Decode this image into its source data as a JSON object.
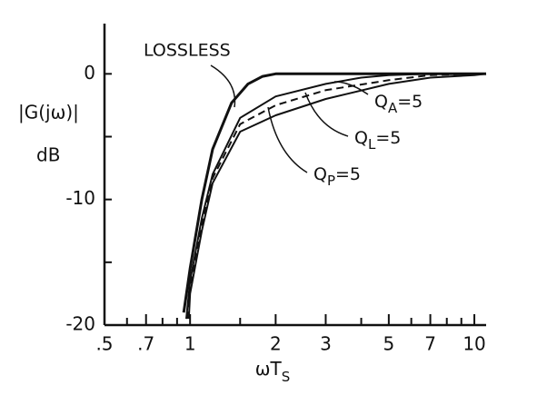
{
  "chart_data": {
    "type": "line",
    "ylabel": "|G(jω)|",
    "yunit": "dB",
    "xlabel": "ωT",
    "xlabel_sub": "S",
    "xscale": "log",
    "xlim": [
      0.5,
      11
    ],
    "ylim": [
      -20,
      4
    ],
    "xticks": [
      {
        "value": 0.5,
        "label": ".5"
      },
      {
        "value": 0.7,
        "label": ".7"
      },
      1,
      2,
      3,
      5,
      7,
      10
    ],
    "xticks_minor": [
      0.6,
      0.8,
      0.9,
      1.5,
      4,
      6,
      8,
      9
    ],
    "yticks": [
      0,
      -10,
      -20
    ],
    "yticks_minor": [
      -5,
      -15
    ],
    "color": "#111111",
    "series": [
      {
        "name": "LOSSLESS",
        "style": "thick",
        "x": [
          0.95,
          1.0,
          1.1,
          1.2,
          1.4,
          1.6,
          1.8,
          2,
          3,
          5,
          11
        ],
        "values": [
          -19,
          -15.5,
          -10,
          -6,
          -2.3,
          -0.8,
          -0.2,
          0,
          0,
          0,
          0
        ]
      },
      {
        "name": "Q",
        "name_sub": "A",
        "name_rest": "=5",
        "style": "solid",
        "x": [
          0.97,
          1.0,
          1.1,
          1.2,
          1.5,
          2,
          3,
          4,
          5,
          7,
          11
        ],
        "values": [
          -19.5,
          -16.5,
          -11.5,
          -8,
          -3.5,
          -1.8,
          -0.8,
          -0.3,
          -0.1,
          0,
          0
        ]
      },
      {
        "name": "Q",
        "name_sub": "L",
        "name_rest": "=5",
        "style": "dashed",
        "x": [
          0.98,
          1.0,
          1.1,
          1.2,
          1.5,
          2,
          3,
          5,
          7,
          10,
          11
        ],
        "values": [
          -19.5,
          -17,
          -12,
          -8.3,
          -4,
          -2.5,
          -1.3,
          -0.5,
          -0.1,
          0,
          0
        ]
      },
      {
        "name": "Q",
        "name_sub": "P",
        "name_rest": "=5",
        "style": "solid",
        "x": [
          0.99,
          1.0,
          1.1,
          1.2,
          1.5,
          2,
          3,
          5,
          7,
          10,
          11
        ],
        "values": [
          -19.5,
          -17.5,
          -12.5,
          -8.7,
          -4.6,
          -3.3,
          -2,
          -0.8,
          -0.3,
          -0.1,
          0
        ]
      }
    ]
  }
}
